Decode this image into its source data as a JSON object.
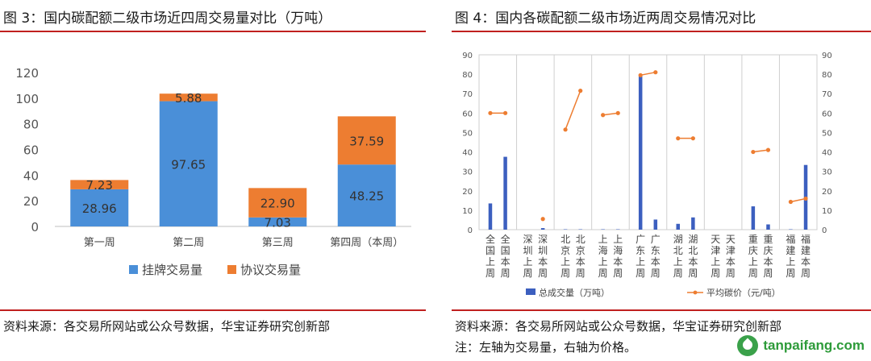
{
  "left": {
    "title": "图 3：国内碳配额二级市场近四周交易量对比（万吨）",
    "source": "资料来源：各交易所网站或公众号数据，华宝证券研究创新部"
  },
  "right": {
    "title": "图 4：国内各碳配额二级市场近两周交易情况对比",
    "source": "资料来源：各交易所网站或公众号数据，华宝证券研究创新部",
    "note": "注：左轴为交易量，右轴为价格。"
  },
  "watermark": "tanpaifang.com",
  "colors": {
    "blue": "#4a8fd8",
    "orange": "#ed7d31",
    "darkblue": "#3c5fbf",
    "red_rule": "#c0201f"
  },
  "chart_data": [
    {
      "type": "bar",
      "stacked": true,
      "categories": [
        "第一周",
        "第二周",
        "第三周",
        "第四周（本周）"
      ],
      "series": [
        {
          "name": "挂牌交易量",
          "values": [
            28.96,
            97.65,
            7.03,
            48.25
          ],
          "labels": [
            "28.96",
            "97.65",
            "7.03",
            "48.25"
          ]
        },
        {
          "name": "协议交易量",
          "values": [
            7.23,
            5.88,
            22.9,
            37.59
          ],
          "labels": [
            "7.23",
            "5.88",
            "22.90",
            "37.59"
          ]
        }
      ],
      "ylim": [
        0,
        120
      ],
      "yticks": [
        "0",
        "20",
        "40",
        "60",
        "80",
        "100",
        "120"
      ],
      "legend_position": "bottom"
    },
    {
      "type": "bar",
      "combo": true,
      "groups": [
        {
          "categories": [
            "全国上周",
            "全国本周"
          ]
        },
        {
          "categories": [
            "深圳上周",
            "深圳本周"
          ]
        },
        {
          "categories": [
            "北京上周",
            "北京本周"
          ]
        },
        {
          "categories": [
            "上海上周",
            "上海本周"
          ]
        },
        {
          "categories": [
            "广东上周",
            "广东本周"
          ]
        },
        {
          "categories": [
            "湖北上周",
            "湖北本周"
          ]
        },
        {
          "categories": [
            "天津上周",
            "天津本周"
          ]
        },
        {
          "categories": [
            "重庆上周",
            "重庆本周"
          ]
        },
        {
          "categories": [
            "福建上周",
            "福建本周"
          ]
        }
      ],
      "series": [
        {
          "name": "总成交量（万吨）",
          "axis": "left",
          "values": [
            [
              13.5,
              37.5
            ],
            [
              0,
              0.8
            ],
            [
              0.2,
              0.2
            ],
            [
              0.2,
              0.2
            ],
            [
              80,
              5.2
            ],
            [
              3,
              6.3
            ],
            [
              0,
              0
            ],
            [
              12,
              2.7
            ],
            [
              0.2,
              33.3
            ]
          ]
        },
        {
          "name": "平均碳价（元/吨）",
          "axis": "right",
          "values": [
            [
              60,
              60
            ],
            [
              null,
              5.5
            ],
            [
              51.5,
              71.5
            ],
            [
              59,
              60
            ],
            [
              79.5,
              81
            ],
            [
              47,
              47
            ],
            [
              null,
              null
            ],
            [
              40,
              41
            ],
            [
              14.3,
              16
            ]
          ]
        }
      ],
      "ylim_left": [
        0,
        90
      ],
      "ylim_right": [
        0,
        90
      ],
      "yticks_left": [
        "0",
        "10",
        "20",
        "30",
        "40",
        "50",
        "60",
        "70",
        "80",
        "90"
      ],
      "yticks_right": [
        "0",
        "10",
        "20",
        "30",
        "40",
        "50",
        "60",
        "70",
        "80",
        "90"
      ],
      "legend_position": "bottom"
    }
  ]
}
